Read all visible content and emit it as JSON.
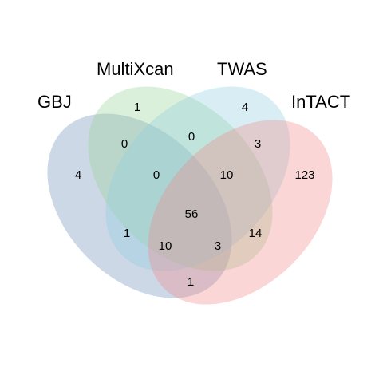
{
  "sets": [
    {
      "key": "gbj",
      "label": "GBJ",
      "color": "#6f8fb8"
    },
    {
      "key": "multixcan",
      "label": "MultiXcan",
      "color": "#99d594"
    },
    {
      "key": "twas",
      "label": "TWAS",
      "color": "#8ecfe0"
    },
    {
      "key": "intact",
      "label": "InTACT",
      "color": "#f08a8a"
    }
  ],
  "regions": {
    "gbj_only": "4",
    "multixcan_only": "1",
    "twas_only": "4",
    "intact_only": "123",
    "gbj_multixcan": "0",
    "multixcan_twas": "0",
    "twas_intact": "3",
    "gbj_multixcan_twas": "0",
    "multixcan_twas_intact": "10",
    "all_four": "56",
    "gbj_twas": "1",
    "gbj_twas_intact": "10",
    "gbj_multixcan_intact": "3",
    "multixcan_intact": "14",
    "gbj_intact": "1"
  }
}
